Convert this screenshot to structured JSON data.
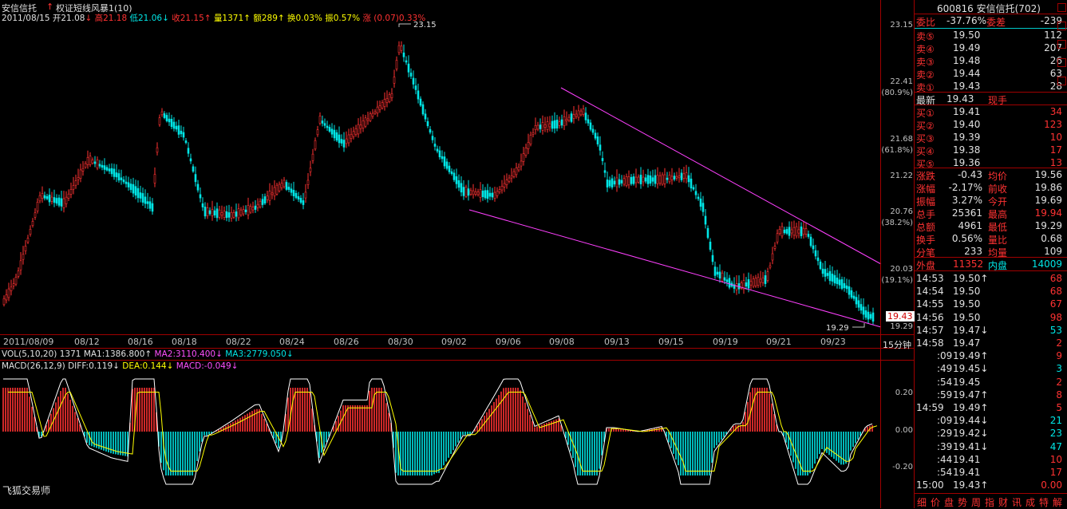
{
  "header": {
    "stock_name": "安信信托",
    "indicator": "权证短线风暴1(10)",
    "date": "2011/08/15",
    "open": "开21.08",
    "high": "高21.18",
    "low": "低21.06",
    "close": "收21.15",
    "volume": "量1371",
    "amount": "额289",
    "turnover": "换0.03%",
    "amplitude": "振0.57%",
    "change": "涨 (0.07)0.33%"
  },
  "vol_header": {
    "label": "VOL(5,10,20)",
    "val": "1371",
    "ma1": "MA1:1386.800",
    "ma2": "MA2:3110.400",
    "ma3": "MA3:2779.050"
  },
  "macd_header": {
    "label": "MACD(26,12,9)",
    "diff": "DIFF:0.119",
    "dea": "DEA:0.144",
    "macd": "MACD:-0.049"
  },
  "price_axis": [
    "23.15",
    "22.41",
    "(80.9%)",
    "21.68",
    "(61.8%)",
    "21.22",
    "20.76",
    "(38.2%)",
    "20.03",
    "(19.1%)",
    "19.29"
  ],
  "current_price_tag": "19.43",
  "annotations": {
    "high_label": "23.15",
    "low_label": "19.29"
  },
  "x_axis": [
    "2011/08/09",
    "08/12",
    "08/16",
    "08/18",
    "08/22",
    "08/24",
    "08/26",
    "08/30",
    "09/02",
    "09/06",
    "09/08",
    "09/13",
    "09/15",
    "09/19",
    "09/21",
    "09/23"
  ],
  "period_label": "15分钟",
  "macd_axis": [
    "0.20",
    "0.00",
    "-0.20"
  ],
  "app_name": "飞狐交易师",
  "panel": {
    "title": "600816 安信信托(702)",
    "weibi_label": "委比",
    "weibi": "-37.76%",
    "weicha_label": "委差",
    "weicha": "-239",
    "asks": [
      {
        "label": "卖⑤",
        "price": "19.50",
        "vol": "112"
      },
      {
        "label": "卖④",
        "price": "19.49",
        "vol": "207"
      },
      {
        "label": "卖③",
        "price": "19.48",
        "vol": "26"
      },
      {
        "label": "卖②",
        "price": "19.44",
        "vol": "63"
      },
      {
        "label": "卖①",
        "price": "19.43",
        "vol": "28"
      }
    ],
    "latest_label": "最新",
    "latest": "19.43",
    "xianshou_label": "现手",
    "bids": [
      {
        "label": "买①",
        "price": "19.41",
        "vol": "34"
      },
      {
        "label": "买②",
        "price": "19.40",
        "vol": "123"
      },
      {
        "label": "买③",
        "price": "19.39",
        "vol": "10"
      },
      {
        "label": "买④",
        "price": "19.38",
        "vol": "17"
      },
      {
        "label": "买⑤",
        "price": "19.36",
        "vol": "13"
      }
    ],
    "stats": [
      {
        "l1": "涨跌",
        "v1": "-0.43",
        "l2": "均价",
        "v2": "19.56"
      },
      {
        "l1": "涨幅",
        "v1": "-2.17%",
        "l2": "前收",
        "v2": "19.86"
      },
      {
        "l1": "振幅",
        "v1": "3.27%",
        "l2": "今开",
        "v2": "19.69"
      },
      {
        "l1": "总手",
        "v1": "25361",
        "l2": "最高",
        "v2": "19.94"
      },
      {
        "l1": "总额",
        "v1": "4961",
        "l2": "最低",
        "v2": "19.29"
      },
      {
        "l1": "换手",
        "v1": "0.56%",
        "l2": "量比",
        "v2": "0.68"
      },
      {
        "l1": "分笔",
        "v1": "233",
        "l2": "均量",
        "v2": "109"
      }
    ],
    "waipan_label": "外盘",
    "waipan": "11352",
    "neipan_label": "内盘",
    "neipan": "14009",
    "ticks": [
      {
        "t": "14:53",
        "p": "19.50",
        "a": "↑",
        "v": "68"
      },
      {
        "t": "14:54",
        "p": "19.50",
        "a": "",
        "v": "68"
      },
      {
        "t": "14:55",
        "p": "19.50",
        "a": "",
        "v": "67"
      },
      {
        "t": "14:56",
        "p": "19.50",
        "a": "",
        "v": "98"
      },
      {
        "t": "14:57",
        "p": "19.47",
        "a": "↓",
        "v": "53"
      },
      {
        "t": "14:58",
        "p": "19.47",
        "a": "",
        "v": "2"
      },
      {
        "t": ":09",
        "p": "19.49",
        "a": "↑",
        "v": "9"
      },
      {
        "t": ":49",
        "p": "19.45",
        "a": "↓",
        "v": "3"
      },
      {
        "t": ":54",
        "p": "19.45",
        "a": "",
        "v": "2"
      },
      {
        "t": ":59",
        "p": "19.47",
        "a": "↑",
        "v": "8"
      },
      {
        "t": "14:59",
        "p": "19.49",
        "a": "↑",
        "v": "5"
      },
      {
        "t": ":09",
        "p": "19.44",
        "a": "↓",
        "v": "21"
      },
      {
        "t": ":29",
        "p": "19.42",
        "a": "↓",
        "v": "23"
      },
      {
        "t": ":39",
        "p": "19.41",
        "a": "↓",
        "v": "47"
      },
      {
        "t": ":44",
        "p": "19.41",
        "a": "",
        "v": "10"
      },
      {
        "t": ":54",
        "p": "19.41",
        "a": "",
        "v": "17"
      },
      {
        "t": "15:00",
        "p": "19.43",
        "a": "↑",
        "v": "0.00"
      }
    ],
    "bottom_tabs": [
      "细",
      "价",
      "盘",
      "势",
      "周",
      "指",
      "财",
      "讯",
      "成",
      "特",
      "解"
    ]
  }
}
